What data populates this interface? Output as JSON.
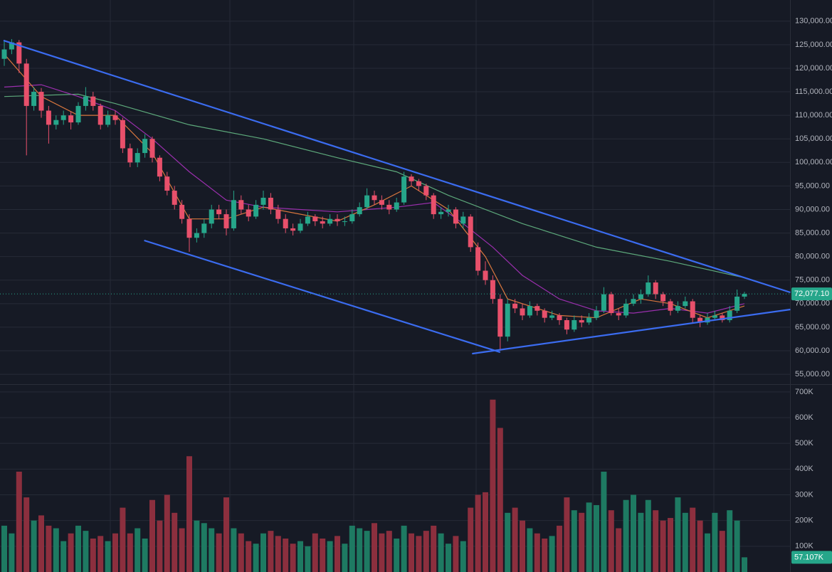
{
  "chart_data": {
    "type": "candlestick",
    "up_color": "#26a68a",
    "down_color": "#e8506b",
    "volume_up_color": "#1e7a62",
    "volume_down_color": "#8c2f3e",
    "grid": true,
    "ylim": [
      52900,
      134500
    ],
    "yticks": [
      {
        "value": 55000,
        "label": "55,000.00"
      },
      {
        "value": 60000,
        "label": "60,000.00"
      },
      {
        "value": 65000,
        "label": "65,000.00"
      },
      {
        "value": 70000,
        "label": "70,000.00"
      },
      {
        "value": 75000,
        "label": "75,000.00"
      },
      {
        "value": 80000,
        "label": "80,000.00"
      },
      {
        "value": 85000,
        "label": "85,000.00"
      },
      {
        "value": 90000,
        "label": "90,000.00"
      },
      {
        "value": 95000,
        "label": "95,000.00"
      },
      {
        "value": 100000,
        "label": "100,000.00"
      },
      {
        "value": 105000,
        "label": "105,000.00"
      },
      {
        "value": 110000,
        "label": "110,000.00"
      },
      {
        "value": 115000,
        "label": "115,000.00"
      },
      {
        "value": 120000,
        "label": "120,000.00"
      },
      {
        "value": 125000,
        "label": "125,000.00"
      },
      {
        "value": 130000,
        "label": "130,000.00"
      }
    ],
    "volume_ylim": [
      0,
      730000
    ],
    "volume_yticks": [
      {
        "value": 100000,
        "label": "100K"
      },
      {
        "value": 200000,
        "label": "200K"
      },
      {
        "value": 300000,
        "label": "300K"
      },
      {
        "value": 400000,
        "label": "400K"
      },
      {
        "value": 500000,
        "label": "500K"
      },
      {
        "value": 600000,
        "label": "600K"
      },
      {
        "value": 700000,
        "label": "700K"
      }
    ],
    "last_price": {
      "value": 72077.1,
      "label": "72,077.10"
    },
    "last_volume": {
      "value": 57107,
      "label": "57.107K"
    },
    "ohlc": [
      [
        122000,
        126000,
        120500,
        124000
      ],
      [
        124000,
        126200,
        123000,
        125500
      ],
      [
        125500,
        126000,
        119000,
        121000
      ],
      [
        121000,
        122000,
        101500,
        112000
      ],
      [
        112000,
        116000,
        111000,
        115000
      ],
      [
        115000,
        115800,
        109500,
        111000
      ],
      [
        111000,
        112000,
        104000,
        108000
      ],
      [
        108000,
        110000,
        107000,
        109000
      ],
      [
        109000,
        111000,
        108000,
        110000
      ],
      [
        110000,
        110800,
        107000,
        108500
      ],
      [
        108500,
        112800,
        108000,
        112000
      ],
      [
        112000,
        116000,
        111000,
        114000
      ],
      [
        114000,
        115000,
        111000,
        112000
      ],
      [
        112000,
        112500,
        107000,
        108000
      ],
      [
        108000,
        111000,
        107500,
        110000
      ],
      [
        110000,
        111000,
        108000,
        109000
      ],
      [
        109000,
        109500,
        102000,
        103000
      ],
      [
        103000,
        104000,
        99000,
        100000
      ],
      [
        100000,
        103000,
        99000,
        102000
      ],
      [
        102000,
        106000,
        101000,
        105000
      ],
      [
        105000,
        105500,
        100000,
        101000
      ],
      [
        101000,
        101500,
        96000,
        97000
      ],
      [
        97000,
        98000,
        93000,
        94000
      ],
      [
        94000,
        95000,
        90000,
        91000
      ],
      [
        91000,
        92000,
        87000,
        88000
      ],
      [
        88000,
        89000,
        81000,
        84000
      ],
      [
        84000,
        86000,
        83000,
        85000
      ],
      [
        85000,
        88000,
        84000,
        87000
      ],
      [
        87000,
        91000,
        86000,
        90000
      ],
      [
        90000,
        91000,
        88000,
        89000
      ],
      [
        89000,
        90000,
        84500,
        86000
      ],
      [
        86000,
        94000,
        85500,
        92000
      ],
      [
        92000,
        93000,
        89000,
        90000
      ],
      [
        90000,
        91000,
        87500,
        88500
      ],
      [
        88500,
        92000,
        88000,
        91000
      ],
      [
        91000,
        94000,
        90000,
        92500
      ],
      [
        92500,
        93500,
        89000,
        90000
      ],
      [
        90000,
        91000,
        87000,
        88000
      ],
      [
        88000,
        89000,
        85000,
        86000
      ],
      [
        86000,
        87000,
        84500,
        85500
      ],
      [
        85500,
        88000,
        85000,
        87000
      ],
      [
        87000,
        89500,
        86500,
        88500
      ],
      [
        88500,
        89000,
        86500,
        87500
      ],
      [
        87500,
        88500,
        86000,
        87000
      ],
      [
        87000,
        89000,
        86500,
        88000
      ],
      [
        88000,
        89000,
        86500,
        87500
      ],
      [
        87500,
        88500,
        86500,
        87500
      ],
      [
        87500,
        90000,
        87000,
        89000
      ],
      [
        89000,
        91500,
        88500,
        90500
      ],
      [
        90500,
        94500,
        90000,
        93000
      ],
      [
        93000,
        94000,
        91000,
        92000
      ],
      [
        92000,
        93000,
        90000,
        91000
      ],
      [
        91000,
        92000,
        89000,
        90000
      ],
      [
        90000,
        92500,
        89500,
        91500
      ],
      [
        91500,
        98000,
        91000,
        97000
      ],
      [
        97000,
        97500,
        95000,
        96000
      ],
      [
        96000,
        96500,
        94000,
        95000
      ],
      [
        95000,
        95500,
        92000,
        93000
      ],
      [
        93000,
        93500,
        88000,
        89000
      ],
      [
        89000,
        90500,
        88000,
        89500
      ],
      [
        89500,
        91000,
        88500,
        90000
      ],
      [
        90000,
        90500,
        86000,
        87000
      ],
      [
        87000,
        89500,
        86000,
        88500
      ],
      [
        88500,
        89000,
        81000,
        82000
      ],
      [
        82000,
        83000,
        76000,
        77000
      ],
      [
        77000,
        79000,
        74000,
        75000
      ],
      [
        75000,
        76000,
        70000,
        71000
      ],
      [
        71000,
        72000,
        60000,
        63000
      ],
      [
        63000,
        71000,
        62000,
        70000
      ],
      [
        70000,
        71000,
        68000,
        69000
      ],
      [
        69000,
        70000,
        66500,
        67500
      ],
      [
        67500,
        70500,
        67000,
        69500
      ],
      [
        69500,
        70000,
        67500,
        68500
      ],
      [
        68500,
        69000,
        66000,
        67000
      ],
      [
        67000,
        68500,
        66500,
        67500
      ],
      [
        67500,
        68000,
        65500,
        66500
      ],
      [
        66500,
        67000,
        63500,
        64500
      ],
      [
        64500,
        67500,
        64000,
        66500
      ],
      [
        66500,
        67500,
        65000,
        66000
      ],
      [
        66000,
        68000,
        65500,
        67000
      ],
      [
        67000,
        69500,
        66500,
        68500
      ],
      [
        68500,
        73500,
        68000,
        72000
      ],
      [
        72000,
        72500,
        67500,
        68000
      ],
      [
        68000,
        69000,
        66500,
        67500
      ],
      [
        67500,
        71000,
        67000,
        70000
      ],
      [
        70000,
        72000,
        69500,
        71000
      ],
      [
        71000,
        73000,
        70000,
        72000
      ],
      [
        72000,
        76000,
        71500,
        74500
      ],
      [
        74500,
        75000,
        71000,
        72000
      ],
      [
        72000,
        72500,
        69500,
        70500
      ],
      [
        70500,
        71000,
        67500,
        68500
      ],
      [
        68500,
        70500,
        68000,
        69500
      ],
      [
        69500,
        71500,
        69000,
        70500
      ],
      [
        70500,
        71000,
        66000,
        67000
      ],
      [
        67000,
        67500,
        65000,
        66000
      ],
      [
        66000,
        68000,
        65500,
        67000
      ],
      [
        67000,
        68500,
        66500,
        67500
      ],
      [
        67500,
        68000,
        66000,
        66500
      ],
      [
        66500,
        69500,
        66000,
        68500
      ],
      [
        68500,
        73000,
        68000,
        71500
      ],
      [
        71500,
        72500,
        71000,
        72077.1
      ]
    ],
    "volume": [
      180000,
      150000,
      390000,
      290000,
      200000,
      220000,
      180000,
      170000,
      120000,
      150000,
      180000,
      160000,
      130000,
      140000,
      120000,
      150000,
      250000,
      150000,
      170000,
      130000,
      280000,
      200000,
      300000,
      230000,
      170000,
      450000,
      200000,
      190000,
      170000,
      150000,
      290000,
      170000,
      150000,
      120000,
      110000,
      150000,
      160000,
      140000,
      130000,
      110000,
      120000,
      100000,
      150000,
      130000,
      120000,
      140000,
      110000,
      180000,
      170000,
      160000,
      190000,
      150000,
      160000,
      130000,
      180000,
      150000,
      140000,
      160000,
      180000,
      150000,
      110000,
      140000,
      120000,
      250000,
      300000,
      310000,
      670000,
      560000,
      230000,
      250000,
      200000,
      170000,
      150000,
      130000,
      140000,
      180000,
      290000,
      240000,
      230000,
      270000,
      260000,
      390000,
      240000,
      170000,
      280000,
      300000,
      230000,
      280000,
      240000,
      200000,
      210000,
      290000,
      230000,
      250000,
      200000,
      150000,
      230000,
      160000,
      240000,
      200000,
      57107
    ],
    "ma_lines": [
      {
        "color": "#5da97b",
        "x": [
          0,
          10,
          15,
          25,
          35,
          45,
          53,
          60,
          70,
          80,
          90,
          100
        ],
        "values": [
          114000,
          114500,
          112500,
          108000,
          105000,
          101000,
          98000,
          93000,
          87000,
          82000,
          79000,
          75500
        ]
      },
      {
        "color": "#9b2fae",
        "x": [
          0,
          5,
          10,
          15,
          20,
          25,
          30,
          35,
          45,
          53,
          58,
          62,
          66,
          70,
          75,
          80,
          85,
          90,
          95,
          100
        ],
        "values": [
          116000,
          116500,
          114000,
          111000,
          105000,
          98000,
          92000,
          90500,
          89500,
          90500,
          91500,
          87000,
          82000,
          76000,
          71000,
          68500,
          68000,
          69000,
          68000,
          70000
        ]
      },
      {
        "color": "#d9773e",
        "x": [
          0,
          5,
          10,
          15,
          20,
          25,
          30,
          35,
          45,
          50,
          55,
          60,
          65,
          68,
          75,
          80,
          86,
          90,
          95,
          100
        ],
        "values": [
          123000,
          114000,
          110000,
          110000,
          102000,
          88000,
          88000,
          90500,
          87500,
          91000,
          95000,
          90000,
          80000,
          71000,
          67500,
          67000,
          71000,
          70000,
          67000,
          69500
        ]
      }
    ],
    "trendlines": [
      {
        "color": "#3b6cf0",
        "x": [
          -0.1,
          106.2
        ],
        "values": [
          125900,
          72390
        ]
      },
      {
        "color": "#3b6cf0",
        "x": [
          18.9,
          67
        ],
        "values": [
          83430,
          59690
        ]
      },
      {
        "color": "#3b6cf0",
        "x": [
          63.2,
          106.2
        ],
        "values": [
          59390,
          68760
        ]
      }
    ]
  }
}
